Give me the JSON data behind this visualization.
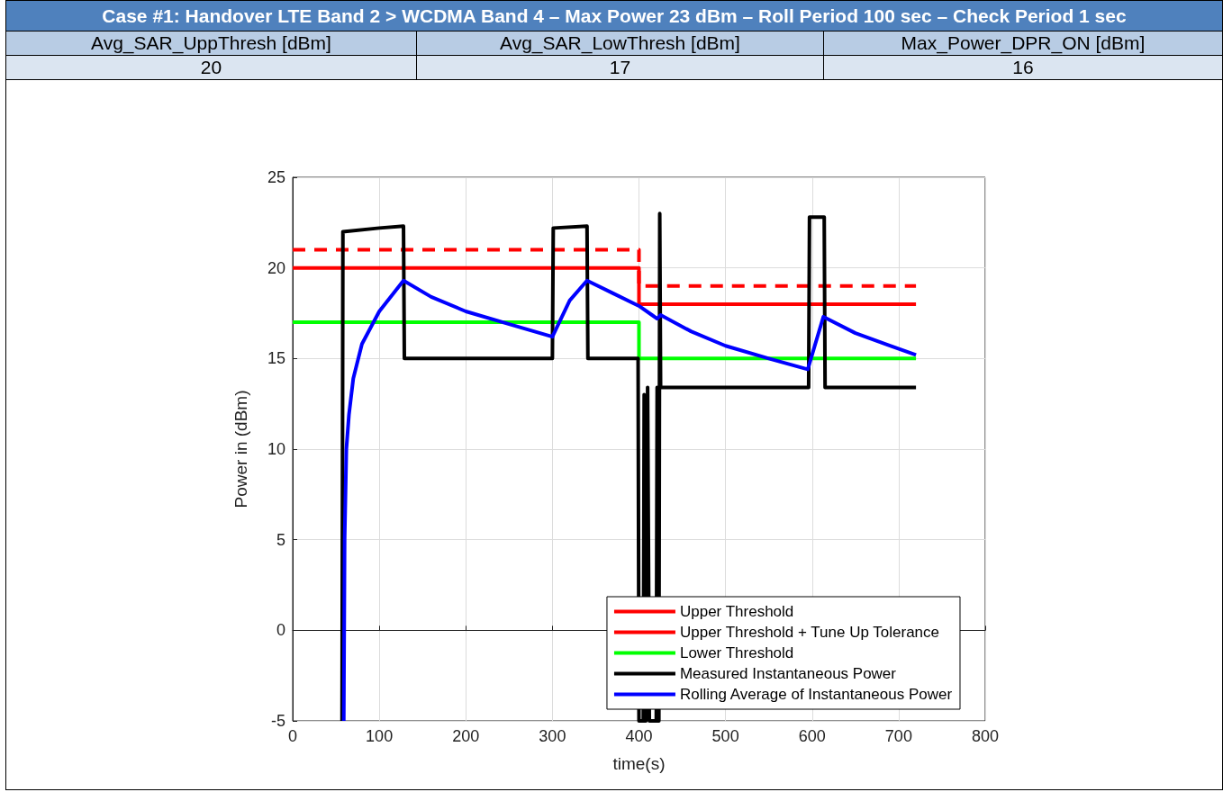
{
  "chart_data": {
    "type": "line",
    "title": "Case #1: Handover LTE Band 2 > WCDMA Band 4 – Max Power 23 dBm – Roll Period 100 sec – Check Period 1 sec",
    "annotations": [
      "Avg_SAR_UppThresh [dBm]",
      "Avg_SAR_LowThresh [dBm]",
      "Max_Power_DPR_ON [dBm]",
      "20",
      "17",
      "16"
    ],
    "xlabel": "time(s)",
    "ylabel": "Power in (dBm)",
    "xlim": [
      0,
      800
    ],
    "xticks": [
      0,
      100,
      200,
      300,
      400,
      500,
      600,
      700,
      800
    ],
    "ylim": [
      -5,
      25
    ],
    "yticks": [
      -5,
      0,
      5,
      10,
      15,
      20,
      25
    ],
    "grid": true,
    "legend": "bottom right",
    "marker": "none",
    "series": [
      {
        "name": "Upper Threshold",
        "color": "#ff0000",
        "line_style": "solid",
        "x": [
          0,
          400,
          400,
          720
        ],
        "values": [
          20,
          20,
          18,
          18
        ]
      },
      {
        "name": "Upper Threshold + Tune Up Tolerance",
        "color": "#ff0000",
        "line_style": "dashed",
        "x": [
          0,
          400,
          400,
          720
        ],
        "values": [
          21,
          21,
          19,
          19
        ]
      },
      {
        "name": "Lower Threshold",
        "color": "#00ff00",
        "line_style": "solid",
        "x": [
          0,
          400,
          400,
          720
        ],
        "values": [
          17,
          17,
          15,
          15
        ]
      },
      {
        "name": "Measured Instantaneous Power",
        "color": "#000000",
        "line_style": "solid",
        "x": [
          57,
          58,
          100,
          128,
          129,
          300,
          301,
          340,
          341,
          399,
          400,
          405,
          406,
          408,
          410,
          412,
          420,
          421,
          423,
          424,
          425,
          596,
          597,
          614,
          615,
          720
        ],
        "values": [
          -5,
          22,
          22.2,
          22.3,
          15,
          15,
          22.2,
          22.3,
          15,
          15,
          -5,
          -5,
          13,
          -5,
          13.4,
          -5,
          -5,
          13.4,
          -5,
          23,
          13.4,
          13.4,
          22.8,
          22.8,
          13.4,
          13.4
        ]
      },
      {
        "name": "Rolling Average of Instantaneous Power",
        "color": "#0000ff",
        "line_style": "solid",
        "x": [
          59,
          60,
          62,
          65,
          70,
          80,
          100,
          128,
          160,
          200,
          250,
          300,
          320,
          340,
          370,
          400,
          415,
          421,
          425,
          460,
          500,
          550,
          595,
          613,
          650,
          690,
          720
        ],
        "values": [
          -5,
          5,
          10,
          11.9,
          13.9,
          15.8,
          17.6,
          19.3,
          18.4,
          17.6,
          16.9,
          16.2,
          18.2,
          19.3,
          18.6,
          17.9,
          17.4,
          17.2,
          17.4,
          16.5,
          15.7,
          15,
          14.4,
          17.3,
          16.4,
          15.7,
          15.2
        ]
      }
    ]
  }
}
